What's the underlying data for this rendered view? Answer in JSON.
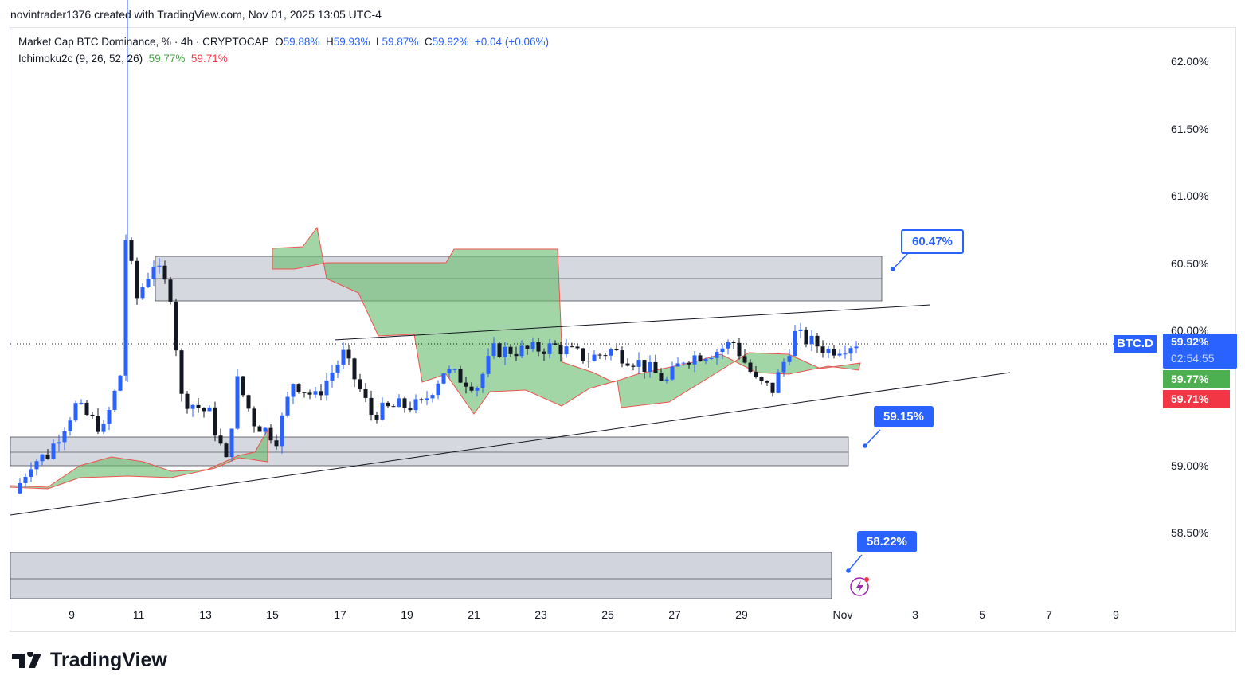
{
  "credit": "novintrader1376 created with TradingView.com, Nov 01, 2025 13:05 UTC-4",
  "legend": {
    "title": "Market Cap BTC Dominance, % · 4h · CRYPTOCAP",
    "o_label": "O",
    "o": "59.88%",
    "h_label": "H",
    "h": "59.93%",
    "l_label": "L",
    "l": "59.87%",
    "c_label": "C",
    "c": "59.92%",
    "change": "+0.04 (+0.06%)",
    "ichimoku": "Ichimoku2c (9, 26, 52, 26)",
    "span_a": "59.77%",
    "span_b": "59.71%"
  },
  "price_axis": [
    "62.00%",
    "61.50%",
    "61.00%",
    "60.50%",
    "60.00%",
    "59.00%",
    "58.50%"
  ],
  "time_axis": [
    "9",
    "11",
    "13",
    "15",
    "17",
    "19",
    "21",
    "23",
    "25",
    "27",
    "29",
    "Nov",
    "3",
    "5",
    "7",
    "9"
  ],
  "tags": {
    "symbol": "BTC.D",
    "price": "59.92%",
    "countdown": "02:54:55",
    "span_a": "59.77%",
    "span_b": "59.71%"
  },
  "callouts": [
    "60.47%",
    "59.15%",
    "58.22%"
  ],
  "logo": "TradingView",
  "colors": {
    "up": "#2962ff",
    "down": "#131722",
    "cloud": "#66bb6a",
    "zone": "#d1d4dc"
  },
  "chart_data": {
    "type": "candlestick",
    "symbol": "BTC.D",
    "timeframe": "4h",
    "ylim": [
      57.9,
      62.2
    ],
    "path": [
      [
        0,
        58.8
      ],
      [
        3,
        59.03
      ],
      [
        6,
        59.09
      ],
      [
        11,
        59.45
      ],
      [
        16,
        59.27
      ],
      [
        19,
        59.68
      ],
      [
        20,
        60.69
      ],
      [
        22,
        60.25
      ],
      [
        25,
        60.51
      ],
      [
        28,
        60.28
      ],
      [
        30,
        59.51
      ],
      [
        35,
        59.39
      ],
      [
        38,
        59.03
      ],
      [
        40,
        59.63
      ],
      [
        43,
        59.33
      ],
      [
        47,
        59.21
      ],
      [
        50,
        59.63
      ],
      [
        54,
        59.51
      ],
      [
        59,
        59.83
      ],
      [
        64,
        59.39
      ],
      [
        69,
        59.45
      ],
      [
        73,
        59.45
      ],
      [
        77,
        59.71
      ],
      [
        83,
        59.6
      ],
      [
        86,
        59.86
      ],
      [
        92,
        59.86
      ],
      [
        97,
        59.89
      ],
      [
        103,
        59.8
      ],
      [
        107,
        59.86
      ],
      [
        112,
        59.77
      ],
      [
        117,
        59.63
      ],
      [
        120,
        59.8
      ],
      [
        126,
        59.86
      ],
      [
        129,
        59.92
      ],
      [
        133,
        59.63
      ],
      [
        136,
        59.57
      ],
      [
        140,
        59.98
      ],
      [
        146,
        59.86
      ],
      [
        151,
        59.92
      ]
    ],
    "zones": [
      [
        60.23,
        60.56
      ],
      [
        59.0,
        59.22
      ],
      [
        58.02,
        58.36
      ]
    ],
    "levels": [
      60.47,
      59.15,
      58.22
    ]
  }
}
